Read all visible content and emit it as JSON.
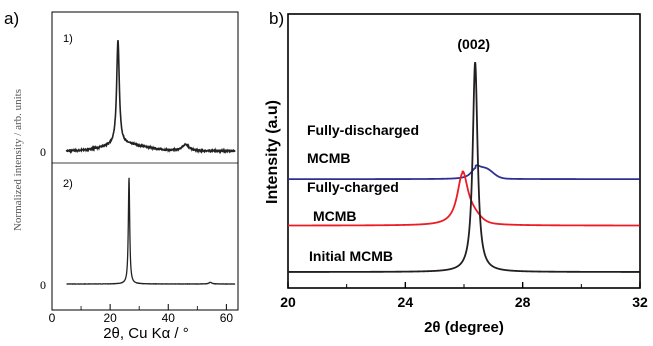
{
  "chart_data": [
    {
      "panel_label": "a)",
      "type": "line",
      "xlabel": "2θ, Cu Kα / °",
      "ylabel": "Normalized intensity / arb. units",
      "xlim": [
        0,
        64
      ],
      "xticks": [
        "0",
        "20",
        "40",
        "60"
      ],
      "grid": false,
      "subplots": [
        {
          "label": "1)",
          "zero_label": "0",
          "peaks": [
            {
              "x": 22.7,
              "height": 0.95,
              "width": 0.55
            },
            {
              "x": 46.0,
              "height": 0.06,
              "width": 1.4
            }
          ],
          "baseline_hump": {
            "center": 25,
            "height": 0.06,
            "width": 10
          },
          "noise": 0.012
        },
        {
          "label": "2)",
          "zero_label": "0",
          "peaks": [
            {
              "x": 26.5,
              "height": 0.97,
              "width": 0.28
            },
            {
              "x": 54.5,
              "height": 0.015,
              "width": 0.6
            }
          ],
          "baseline_hump": {
            "center": 25,
            "height": 0.0,
            "width": 10
          },
          "noise": 0.002
        }
      ]
    },
    {
      "panel_label": "b)",
      "type": "line",
      "xlabel": "2θ (degree)",
      "ylabel": "Intensity (a.u)",
      "xlim": [
        20,
        32
      ],
      "xticks": [
        "20",
        "24",
        "28",
        "32"
      ],
      "grid": false,
      "peak_annotation": {
        "text": "(002)",
        "x": 26.4
      },
      "series": [
        {
          "label": "Fully-discharged",
          "label_line2": "MCMB",
          "color": "#2e3192",
          "offset": 0.54,
          "peak_x": 26.4,
          "peak_height": 0.06,
          "width": 0.2,
          "tail": 0.05
        },
        {
          "label": "Fully-charged",
          "label_line2": "MCMB",
          "color": "#ed1c24",
          "offset": 0.27,
          "peak_x": 25.95,
          "peak_height": 0.3,
          "width": 0.22,
          "tail": 0.04
        },
        {
          "label": "Initial MCMB",
          "label_line2": "",
          "color": "#231f20",
          "offset": 0.0,
          "peak_x": 26.38,
          "peak_height": 1.22,
          "width": 0.1,
          "tail": 0.0
        }
      ]
    }
  ]
}
